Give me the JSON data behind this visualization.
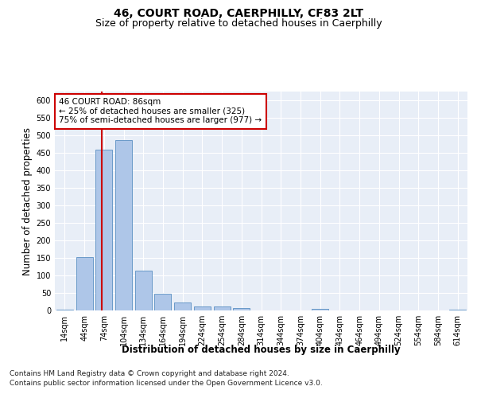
{
  "title": "46, COURT ROAD, CAERPHILLY, CF83 2LT",
  "subtitle": "Size of property relative to detached houses in Caerphilly",
  "xlabel": "Distribution of detached houses by size in Caerphilly",
  "ylabel": "Number of detached properties",
  "categories": [
    "14sqm",
    "44sqm",
    "74sqm",
    "104sqm",
    "134sqm",
    "164sqm",
    "194sqm",
    "224sqm",
    "254sqm",
    "284sqm",
    "314sqm",
    "344sqm",
    "374sqm",
    "404sqm",
    "434sqm",
    "464sqm",
    "494sqm",
    "524sqm",
    "554sqm",
    "584sqm",
    "614sqm"
  ],
  "values": [
    3,
    153,
    460,
    487,
    113,
    48,
    22,
    11,
    11,
    7,
    0,
    0,
    0,
    5,
    0,
    0,
    0,
    0,
    0,
    0,
    3
  ],
  "bar_color": "#aec6e8",
  "bar_edgecolor": "#5a8fc2",
  "vline_color": "#cc0000",
  "annotation_text": "46 COURT ROAD: 86sqm\n← 25% of detached houses are smaller (325)\n75% of semi-detached houses are larger (977) →",
  "annotation_box_edgecolor": "#cc0000",
  "annotation_box_facecolor": "#ffffff",
  "ylim": [
    0,
    625
  ],
  "yticks": [
    0,
    50,
    100,
    150,
    200,
    250,
    300,
    350,
    400,
    450,
    500,
    550,
    600
  ],
  "footer_line1": "Contains HM Land Registry data © Crown copyright and database right 2024.",
  "footer_line2": "Contains public sector information licensed under the Open Government Licence v3.0.",
  "bg_color": "#ffffff",
  "plot_bg_color": "#e8eef7",
  "grid_color": "#ffffff",
  "title_fontsize": 10,
  "subtitle_fontsize": 9,
  "axis_label_fontsize": 8.5,
  "tick_fontsize": 7,
  "footer_fontsize": 6.5,
  "annotation_fontsize": 7.5
}
